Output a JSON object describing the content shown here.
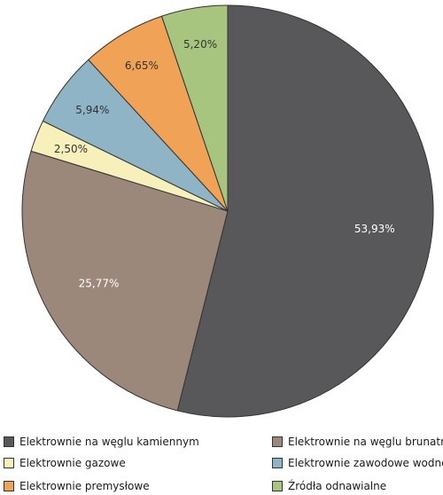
{
  "chart_data": {
    "type": "pie",
    "start_angle_deg": 0,
    "direction": "clockwise",
    "slices": [
      {
        "label": "Elektrownie na węglu kamiennym",
        "value": 53.93,
        "display": "53,93%",
        "color": "#58585a",
        "label_color": "#ffffff"
      },
      {
        "label": "Elektrownie na węglu brunatnym",
        "value": 25.77,
        "display": "25,77%",
        "color": "#9c877b",
        "label_color": "#ffffff"
      },
      {
        "label": "Elektrownie gazowe",
        "value": 2.5,
        "display": "2,50%",
        "color": "#f8f0bb",
        "label_color": "#333333"
      },
      {
        "label": "Elektrownie zawodowe wodne",
        "value": 5.94,
        "display": "5,94%",
        "color": "#8eb4c5",
        "label_color": "#333333"
      },
      {
        "label": "Elektrownie premysłowe",
        "value": 6.65,
        "display": "6,65%",
        "color": "#f0a257",
        "label_color": "#333333"
      },
      {
        "label": "Źródła odnawialne",
        "value": 5.2,
        "display": "5,20%",
        "color": "#a8c57f",
        "label_color": "#333333"
      }
    ],
    "legend_position": "bottom"
  }
}
